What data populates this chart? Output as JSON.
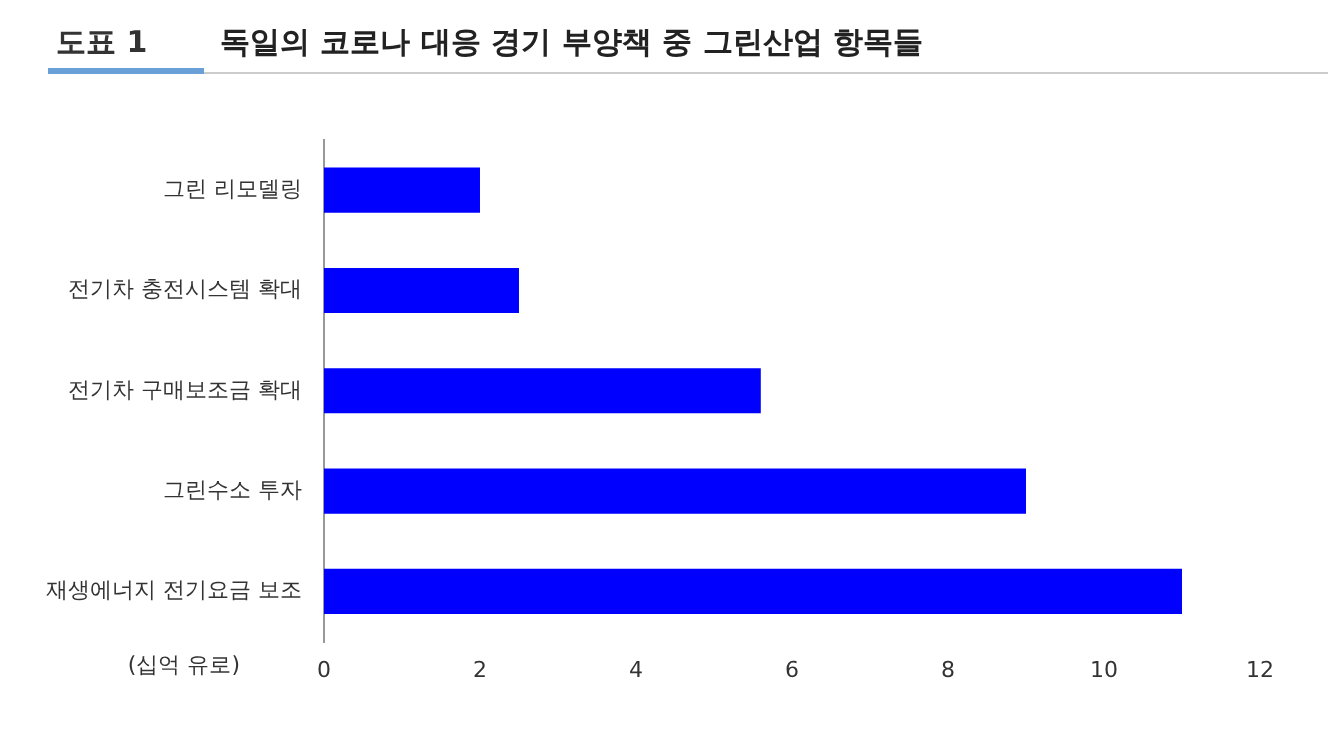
{
  "chart_data": {
    "type": "bar",
    "orientation": "horizontal",
    "title": "독일의 코로나 대응 경기 부양책 중 그린산업 항목들",
    "annotations": [
      "도표 1"
    ],
    "xlabel": "(십억 유로)",
    "categories": [
      "그린 리모델링",
      "전기차 충전시스템 확대",
      "전기차 구매보조금 확대",
      "그린수소 투자",
      "재생에너지 전기요금 보조"
    ],
    "values": [
      2,
      2.5,
      5.6,
      9,
      11
    ],
    "color": "#0000ff",
    "xlim": [
      0,
      12
    ],
    "xticks": [
      0,
      2,
      4,
      6,
      8,
      10,
      12
    ],
    "grid": false,
    "legend": false
  }
}
